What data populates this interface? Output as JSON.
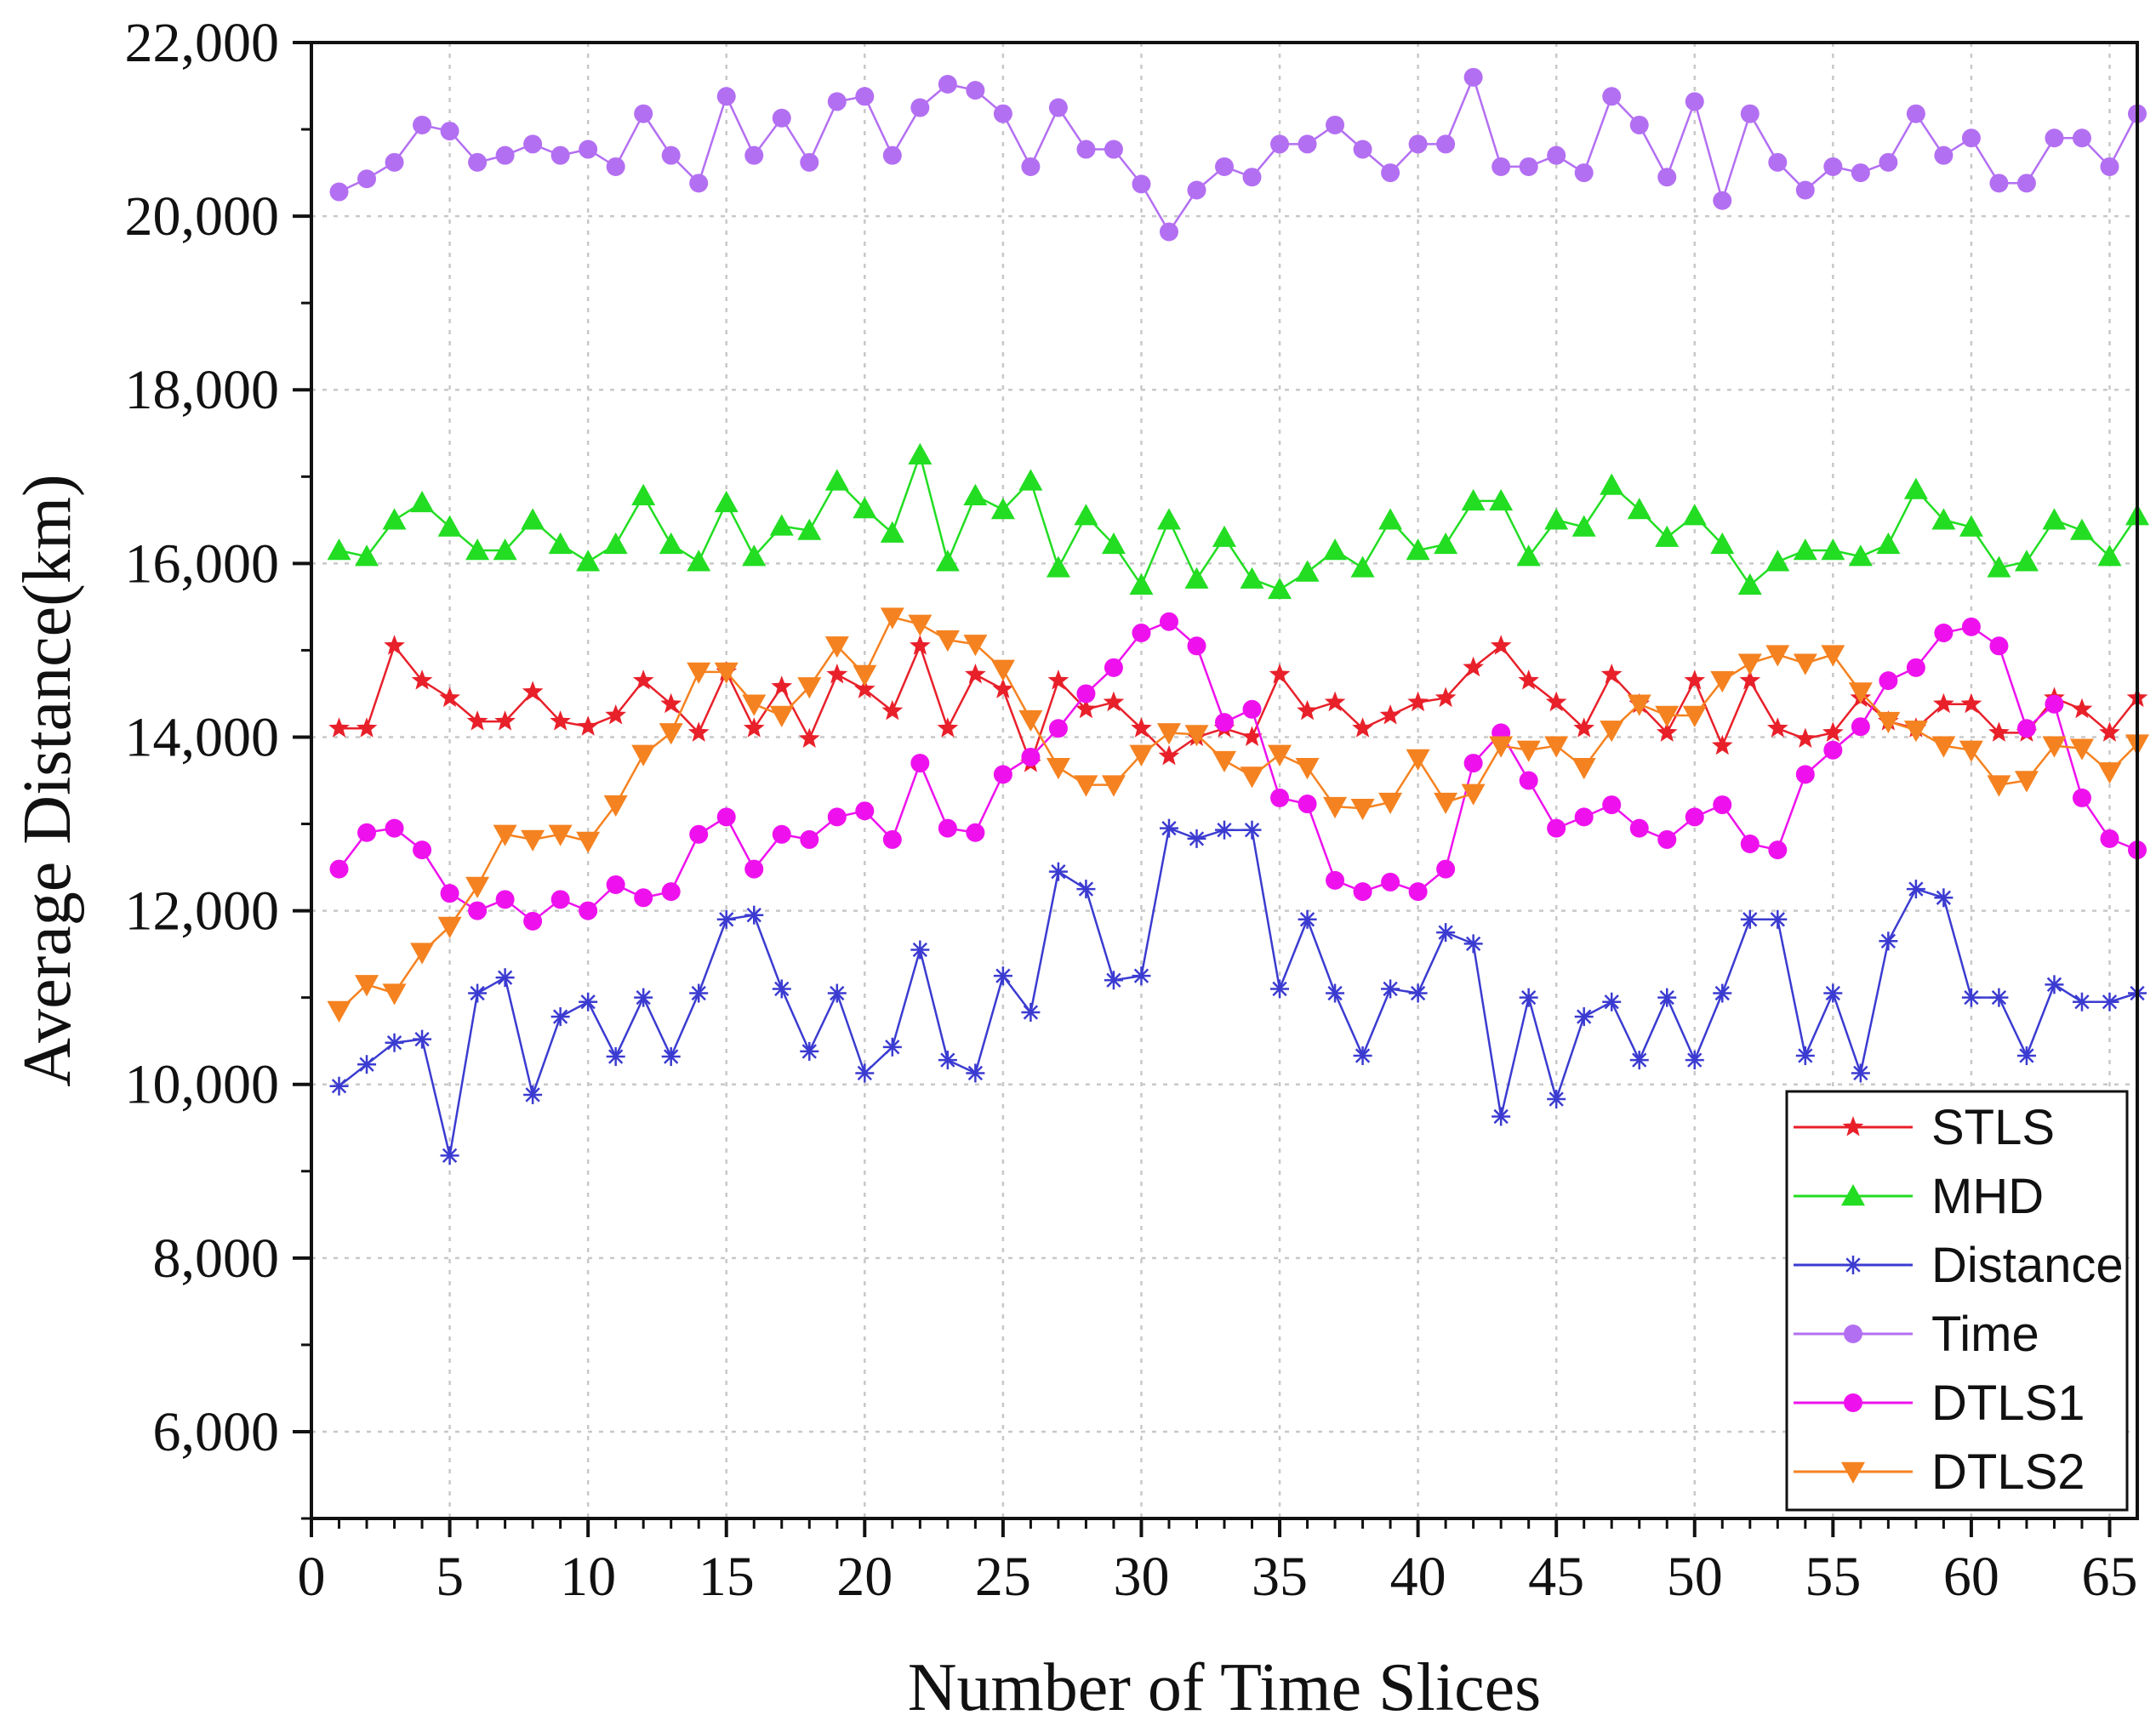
{
  "chart_data": {
    "type": "line",
    "title": "",
    "xlabel": "Number of Time Slices",
    "ylabel": "Average Distance(km)",
    "xlim": [
      0,
      66
    ],
    "ylim": [
      5000,
      22000
    ],
    "xticks": [
      0,
      5,
      10,
      15,
      20,
      25,
      30,
      35,
      40,
      45,
      50,
      55,
      60,
      65
    ],
    "xtick_labels": [
      "0",
      "5",
      "10",
      "15",
      "20",
      "25",
      "30",
      "35",
      "40",
      "45",
      "50",
      "55",
      "60",
      "65"
    ],
    "yticks": [
      6000,
      8000,
      10000,
      12000,
      14000,
      16000,
      18000,
      20000,
      22000
    ],
    "ytick_labels": [
      "6,000",
      "8,000",
      "10,000",
      "12,000",
      "14,000",
      "16,000",
      "18,000",
      "20,000",
      "22,000"
    ],
    "grid": true,
    "legend_position": "bottom-right",
    "x": [
      1,
      2,
      3,
      4,
      5,
      6,
      7,
      8,
      9,
      10,
      11,
      12,
      13,
      14,
      15,
      16,
      17,
      18,
      19,
      20,
      21,
      22,
      23,
      24,
      25,
      26,
      27,
      28,
      29,
      30,
      31,
      32,
      33,
      34,
      35,
      36,
      37,
      38,
      39,
      40,
      41,
      42,
      43,
      44,
      45,
      46,
      47,
      48,
      49,
      50,
      51,
      52,
      53,
      54,
      55,
      56,
      57,
      58,
      59,
      60,
      61,
      62,
      63,
      64,
      65,
      66
    ],
    "series": [
      {
        "name": "STLS",
        "color": "#e8202a",
        "marker": "star",
        "values": [
          14100,
          14100,
          15050,
          14650,
          14450,
          14180,
          14180,
          14520,
          14180,
          14120,
          14250,
          14650,
          14380,
          14050,
          14750,
          14100,
          14580,
          13980,
          14720,
          14550,
          14300,
          15050,
          14100,
          14720,
          14550,
          13700,
          14650,
          14320,
          14400,
          14100,
          13780,
          14000,
          14100,
          14000,
          14720,
          14300,
          14400,
          14100,
          14250,
          14400,
          14450,
          14800,
          15050,
          14650,
          14400,
          14100,
          14720,
          14380,
          14050,
          14650,
          13900,
          14650,
          14100,
          13980,
          14050,
          14450,
          14180,
          14100,
          14380,
          14380,
          14050,
          14050,
          14450,
          14320,
          14050,
          14450
        ]
      },
      {
        "name": "MHD",
        "color": "#22dd22",
        "marker": "triangle-up",
        "values": [
          16150,
          16080,
          16500,
          16700,
          16420,
          16150,
          16150,
          16500,
          16220,
          16020,
          16220,
          16780,
          16220,
          16020,
          16700,
          16080,
          16430,
          16380,
          16950,
          16630,
          16350,
          17250,
          16020,
          16780,
          16620,
          16950,
          15950,
          16550,
          16220,
          15750,
          16500,
          15820,
          16300,
          15820,
          15700,
          15900,
          16150,
          15950,
          16500,
          16150,
          16220,
          16720,
          16720,
          16080,
          16500,
          16420,
          16900,
          16620,
          16300,
          16550,
          16220,
          15750,
          16020,
          16150,
          16150,
          16080,
          16220,
          16850,
          16500,
          16420,
          15950,
          16020,
          16500,
          16380,
          16080,
          16550
        ]
      },
      {
        "name": "Distance",
        "color": "#3b3bd1",
        "marker": "asterisk",
        "values": [
          9980,
          10230,
          10480,
          10520,
          9180,
          11050,
          11230,
          9880,
          10780,
          10950,
          10320,
          11000,
          10320,
          11050,
          11900,
          11950,
          11100,
          10380,
          11050,
          10130,
          10430,
          11550,
          10280,
          10130,
          11250,
          10830,
          12450,
          12250,
          11200,
          11250,
          12950,
          12830,
          12930,
          12930,
          11100,
          11900,
          11050,
          10330,
          11100,
          11050,
          11750,
          11620,
          9630,
          11000,
          9830,
          10780,
          10950,
          10280,
          11000,
          10280,
          11050,
          11900,
          11900,
          10330,
          11050,
          10130,
          11650,
          12250,
          12150,
          11000,
          11000,
          10330,
          11150,
          10950,
          10950,
          11050
        ]
      },
      {
        "name": "Time",
        "color": "#b36ff2",
        "marker": "circle",
        "values": [
          20280,
          20430,
          20620,
          21050,
          20980,
          20620,
          20700,
          20830,
          20700,
          20770,
          20570,
          21180,
          20700,
          20380,
          21380,
          20700,
          21130,
          20620,
          21320,
          21380,
          20700,
          21250,
          21520,
          21450,
          21180,
          20570,
          21250,
          20770,
          20770,
          20370,
          19820,
          20300,
          20570,
          20450,
          20830,
          20830,
          21050,
          20770,
          20500,
          20830,
          20830,
          21600,
          20570,
          20570,
          20700,
          20500,
          21380,
          21050,
          20450,
          21320,
          20180,
          21180,
          20620,
          20300,
          20570,
          20500,
          20620,
          21180,
          20700,
          20900,
          20380,
          20380,
          20900,
          20900,
          20570,
          21180
        ]
      },
      {
        "name": "DTLS1",
        "color": "#ee11ee",
        "marker": "circle",
        "values": [
          12480,
          12900,
          12950,
          12700,
          12200,
          12000,
          12130,
          11880,
          12130,
          12000,
          12300,
          12150,
          12220,
          12880,
          13080,
          12480,
          12880,
          12820,
          13080,
          13150,
          12820,
          13700,
          12950,
          12900,
          13570,
          13770,
          14100,
          14500,
          14800,
          15200,
          15330,
          15050,
          14170,
          14320,
          13300,
          13230,
          12350,
          12220,
          12330,
          12220,
          12480,
          13700,
          14050,
          13500,
          12950,
          13080,
          13220,
          12950,
          12820,
          13080,
          13220,
          12770,
          12700,
          13570,
          13850,
          14120,
          14650,
          14800,
          15200,
          15270,
          15050,
          14100,
          14380,
          13300,
          12830,
          12700
        ]
      },
      {
        "name": "DTLS2",
        "color": "#f58220",
        "marker": "triangle-down",
        "values": [
          10850,
          11150,
          11050,
          11520,
          11820,
          12280,
          12880,
          12820,
          12880,
          12800,
          13220,
          13800,
          14050,
          14750,
          14750,
          14380,
          14250,
          14580,
          15050,
          14720,
          15380,
          15300,
          15120,
          15070,
          14780,
          14200,
          13650,
          13450,
          13450,
          13800,
          14050,
          14030,
          13730,
          13550,
          13800,
          13650,
          13200,
          13180,
          13250,
          13750,
          13250,
          13350,
          13900,
          13850,
          13900,
          13650,
          14080,
          14380,
          14250,
          14250,
          14650,
          14850,
          14950,
          14850,
          14950,
          14520,
          14180,
          14080,
          13900,
          13850,
          13450,
          13500,
          13900,
          13870,
          13600,
          13920
        ]
      }
    ]
  }
}
